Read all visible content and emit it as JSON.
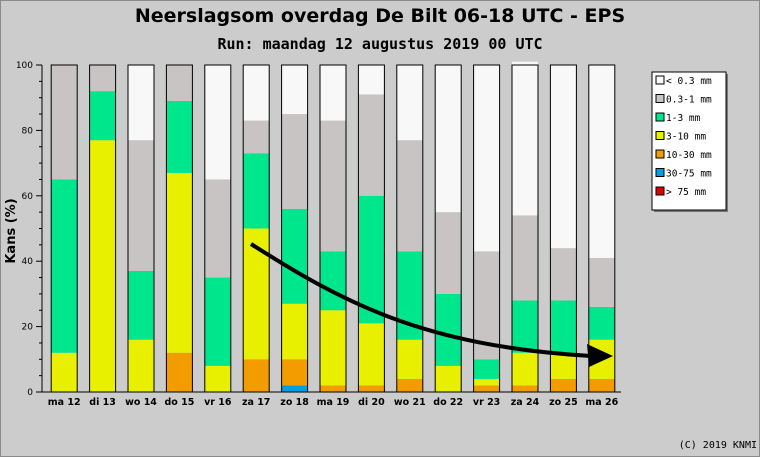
{
  "chart_data": {
    "type": "bar",
    "stacked": true,
    "title": "Neerslagsom overdag De Bilt 06-18 UTC - EPS",
    "subtitle": "Run: maandag 12 augustus 2019   00 UTC",
    "ylabel": "Kans (%)",
    "ylim": [
      0,
      100
    ],
    "yticks": [
      "0",
      "20",
      "40",
      "60",
      "80",
      "100"
    ],
    "categories": [
      "ma 12",
      "di 13",
      "wo 14",
      "do 15",
      "vr 16",
      "za 17",
      "zo 18",
      "ma 19",
      "di 20",
      "wo 21",
      "do 22",
      "vr 23",
      "za 24",
      "zo 25",
      "ma 26"
    ],
    "series": [
      {
        "name": "> 75 mm",
        "color": "#e00000",
        "values": [
          0,
          0,
          0,
          0,
          0,
          0,
          0,
          0,
          0,
          0,
          0,
          0,
          0,
          0,
          0
        ]
      },
      {
        "name": "30-75 mm",
        "color": "#00a0e0",
        "values": [
          0,
          0,
          0,
          0,
          0,
          0,
          2,
          0,
          0,
          0,
          0,
          0,
          0,
          0,
          0
        ]
      },
      {
        "name": "10-30 mm",
        "color": "#f29c00",
        "values": [
          0,
          0,
          0,
          12,
          0,
          10,
          8,
          2,
          2,
          4,
          0,
          2,
          2,
          4,
          4
        ]
      },
      {
        "name": "3-10 mm",
        "color": "#e8f000",
        "values": [
          12,
          77,
          16,
          55,
          8,
          40,
          17,
          23,
          19,
          12,
          8,
          2,
          10,
          8,
          12
        ]
      },
      {
        "name": "1-3 mm",
        "color": "#00e68c",
        "values": [
          53,
          15,
          21,
          22,
          27,
          23,
          29,
          18,
          39,
          27,
          22,
          6,
          16,
          16,
          10
        ]
      },
      {
        "name": "0.3-1 mm",
        "color": "#c8c4c4",
        "values": [
          35,
          8,
          40,
          11,
          30,
          10,
          29,
          40,
          31,
          34,
          25,
          33,
          26,
          16,
          15
        ]
      },
      {
        "name": "< 0.3 mm",
        "color": "#f8f8f8",
        "values": [
          0,
          0,
          23,
          0,
          35,
          17,
          15,
          17,
          9,
          23,
          45,
          57,
          47,
          56,
          59
        ]
      }
    ],
    "legend_order": [
      "< 0.3 mm",
      "0.3-1 mm",
      "1-3 mm",
      "3-10 mm",
      "10-30 mm",
      "30-75 mm",
      "> 75 mm"
    ],
    "legend_position": "top-right",
    "annotation": "trend arrow pointing down-right",
    "background": "#cccccc"
  },
  "footer": {
    "copyright": "(C) 2019 KNMI"
  }
}
